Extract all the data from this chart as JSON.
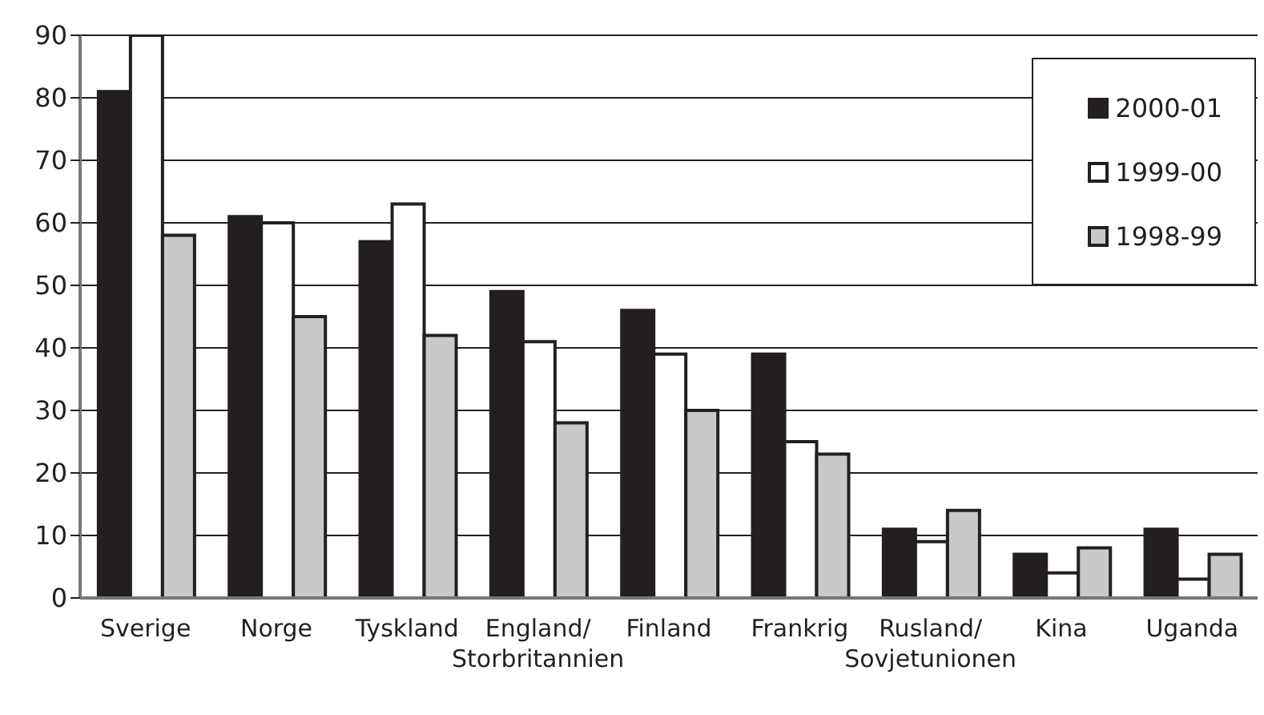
{
  "chart_data": {
    "type": "bar",
    "categories": [
      "Sverige",
      "Norge",
      "Tyskland",
      "England/ Storbritannien",
      "Finland",
      "Frankrig",
      "Rusland/ Sovjetunionen",
      "Kina",
      "Uganda"
    ],
    "series": [
      {
        "name": "2000-01",
        "color": "#231f20",
        "values": [
          81,
          61,
          57,
          49,
          46,
          39,
          11,
          7,
          11
        ]
      },
      {
        "name": "1999-00",
        "color": "#ffffff",
        "values": [
          90,
          60,
          63,
          41,
          39,
          25,
          9,
          4,
          3
        ]
      },
      {
        "name": "1998-99",
        "color": "#c8c9cb",
        "values": [
          58,
          45,
          42,
          28,
          30,
          23,
          14,
          8,
          7
        ]
      }
    ],
    "ylim": [
      0,
      90
    ],
    "yticks": [
      0,
      10,
      20,
      30,
      40,
      50,
      60,
      70,
      80,
      90
    ],
    "grid": "y",
    "legend": "top right"
  }
}
